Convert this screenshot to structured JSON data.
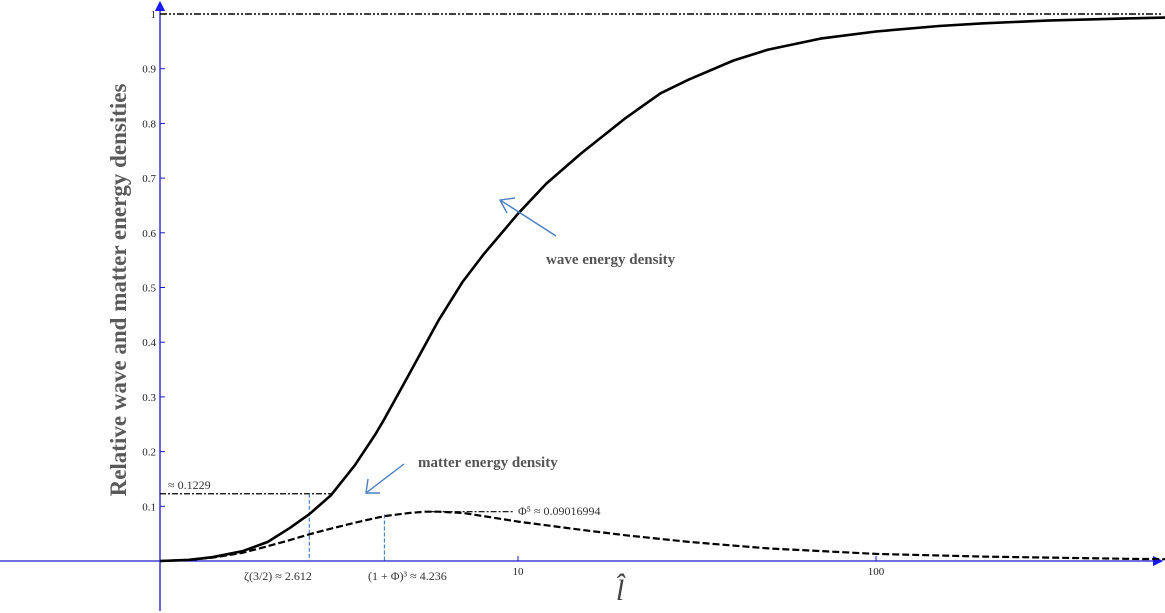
{
  "chart_data": {
    "type": "line",
    "title": "",
    "xlabel": "l̂",
    "ylabel": "Relative wave and matter energy densities",
    "x_scale": "log",
    "xlim": [
      1,
      1000
    ],
    "ylim": [
      0,
      1
    ],
    "grid": false,
    "x_ticks": [
      {
        "value": 10,
        "label": "10"
      },
      {
        "value": 100,
        "label": "100"
      }
    ],
    "y_ticks": [
      {
        "value": 0.1,
        "label": "0.1"
      },
      {
        "value": 0.2,
        "label": "0.2"
      },
      {
        "value": 0.3,
        "label": "0.3"
      },
      {
        "value": 0.4,
        "label": "0.4"
      },
      {
        "value": 0.5,
        "label": "0.5"
      },
      {
        "value": 0.6,
        "label": "0.6"
      },
      {
        "value": 0.7,
        "label": "0.7"
      },
      {
        "value": 0.8,
        "label": "0.8"
      },
      {
        "value": 0.9,
        "label": "0.9"
      },
      {
        "value": 1,
        "label": "1"
      }
    ],
    "series": [
      {
        "name": "wave energy density",
        "style": "solid",
        "color": "#000000",
        "points": [
          [
            1.0,
            0.0
          ],
          [
            1.2,
            0.002
          ],
          [
            1.4,
            0.007
          ],
          [
            1.7,
            0.018
          ],
          [
            2.0,
            0.035
          ],
          [
            2.3,
            0.06
          ],
          [
            2.612,
            0.0855
          ],
          [
            3.0,
            0.12
          ],
          [
            3.5,
            0.175
          ],
          [
            4.0,
            0.232
          ],
          [
            4.236,
            0.26
          ],
          [
            5.0,
            0.345
          ],
          [
            6.0,
            0.44
          ],
          [
            7.0,
            0.51
          ],
          [
            8.0,
            0.56
          ],
          [
            10.0,
            0.635
          ],
          [
            12.0,
            0.69
          ],
          [
            15.0,
            0.745
          ],
          [
            20.0,
            0.81
          ],
          [
            25.0,
            0.855
          ],
          [
            30.0,
            0.88
          ],
          [
            40.0,
            0.915
          ],
          [
            50.0,
            0.935
          ],
          [
            70.0,
            0.955
          ],
          [
            100.0,
            0.968
          ],
          [
            150.0,
            0.978
          ],
          [
            200.0,
            0.983
          ],
          [
            300.0,
            0.988
          ],
          [
            500.0,
            0.992
          ],
          [
            1000.0,
            0.996
          ]
        ]
      },
      {
        "name": "matter energy density",
        "style": "dashed",
        "color": "#000000",
        "points": [
          [
            1.0,
            0.0
          ],
          [
            1.2,
            0.002
          ],
          [
            1.4,
            0.006
          ],
          [
            1.7,
            0.015
          ],
          [
            2.0,
            0.027
          ],
          [
            2.3,
            0.038
          ],
          [
            2.612,
            0.0488
          ],
          [
            3.0,
            0.059
          ],
          [
            3.5,
            0.07
          ],
          [
            4.236,
            0.082
          ],
          [
            5.0,
            0.088
          ],
          [
            5.5,
            0.0902
          ],
          [
            6.0,
            0.0902
          ],
          [
            7.0,
            0.088
          ],
          [
            8.0,
            0.082
          ],
          [
            10.0,
            0.072
          ],
          [
            15.0,
            0.057
          ],
          [
            20.0,
            0.047
          ],
          [
            30.0,
            0.035
          ],
          [
            50.0,
            0.023
          ],
          [
            100.0,
            0.013
          ],
          [
            200.0,
            0.008
          ],
          [
            500.0,
            0.004
          ],
          [
            1000.0,
            0.002
          ]
        ]
      }
    ],
    "reference_lines": [
      {
        "type": "horizontal",
        "y": 1,
        "style": "dash-dot"
      }
    ],
    "annotations": [
      {
        "id": "wave_label",
        "text": "wave energy density"
      },
      {
        "id": "matter_label",
        "text": "matter energy density"
      },
      {
        "id": "y_value",
        "text": "≈ 0.1229",
        "y": 0.1229
      },
      {
        "id": "phi5",
        "text": "Φ⁵ ≈ 0.09016994",
        "y": 0.09016994
      },
      {
        "id": "zeta",
        "text": "ζ(3/2) ≈ 2.612",
        "x": 2.612
      },
      {
        "id": "one_plus_phi",
        "text": "(1 + Φ)³ ≈ 4.236",
        "x": 4.236
      }
    ]
  }
}
